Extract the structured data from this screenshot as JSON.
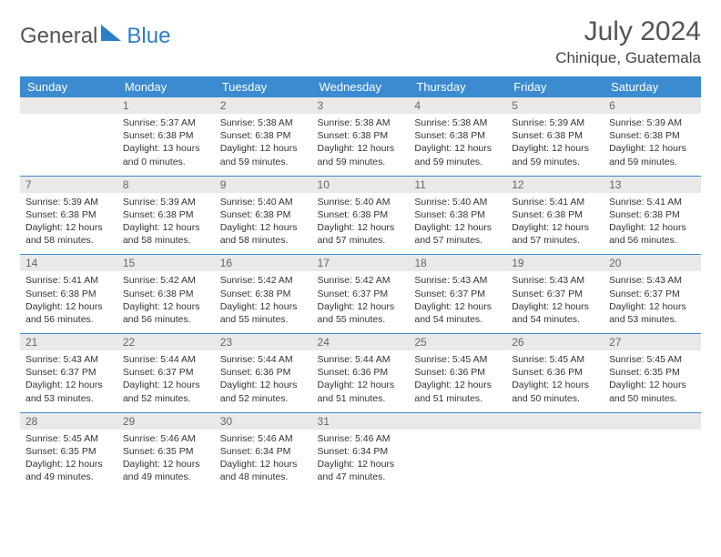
{
  "logo": {
    "general": "General",
    "blue": "Blue"
  },
  "title": "July 2024",
  "location": "Chinique, Guatemala",
  "colors": {
    "header_bg": "#3a8bd0",
    "header_text": "#ffffff",
    "daynum_bg": "#e9e9e9",
    "rule": "#3a8bd0",
    "text": "#333333"
  },
  "dow": [
    "Sunday",
    "Monday",
    "Tuesday",
    "Wednesday",
    "Thursday",
    "Friday",
    "Saturday"
  ],
  "weeks": [
    [
      null,
      {
        "n": "1",
        "sr": "5:37 AM",
        "ss": "6:38 PM",
        "dl": "13 hours and 0 minutes."
      },
      {
        "n": "2",
        "sr": "5:38 AM",
        "ss": "6:38 PM",
        "dl": "12 hours and 59 minutes."
      },
      {
        "n": "3",
        "sr": "5:38 AM",
        "ss": "6:38 PM",
        "dl": "12 hours and 59 minutes."
      },
      {
        "n": "4",
        "sr": "5:38 AM",
        "ss": "6:38 PM",
        "dl": "12 hours and 59 minutes."
      },
      {
        "n": "5",
        "sr": "5:39 AM",
        "ss": "6:38 PM",
        "dl": "12 hours and 59 minutes."
      },
      {
        "n": "6",
        "sr": "5:39 AM",
        "ss": "6:38 PM",
        "dl": "12 hours and 59 minutes."
      }
    ],
    [
      {
        "n": "7",
        "sr": "5:39 AM",
        "ss": "6:38 PM",
        "dl": "12 hours and 58 minutes."
      },
      {
        "n": "8",
        "sr": "5:39 AM",
        "ss": "6:38 PM",
        "dl": "12 hours and 58 minutes."
      },
      {
        "n": "9",
        "sr": "5:40 AM",
        "ss": "6:38 PM",
        "dl": "12 hours and 58 minutes."
      },
      {
        "n": "10",
        "sr": "5:40 AM",
        "ss": "6:38 PM",
        "dl": "12 hours and 57 minutes."
      },
      {
        "n": "11",
        "sr": "5:40 AM",
        "ss": "6:38 PM",
        "dl": "12 hours and 57 minutes."
      },
      {
        "n": "12",
        "sr": "5:41 AM",
        "ss": "6:38 PM",
        "dl": "12 hours and 57 minutes."
      },
      {
        "n": "13",
        "sr": "5:41 AM",
        "ss": "6:38 PM",
        "dl": "12 hours and 56 minutes."
      }
    ],
    [
      {
        "n": "14",
        "sr": "5:41 AM",
        "ss": "6:38 PM",
        "dl": "12 hours and 56 minutes."
      },
      {
        "n": "15",
        "sr": "5:42 AM",
        "ss": "6:38 PM",
        "dl": "12 hours and 56 minutes."
      },
      {
        "n": "16",
        "sr": "5:42 AM",
        "ss": "6:38 PM",
        "dl": "12 hours and 55 minutes."
      },
      {
        "n": "17",
        "sr": "5:42 AM",
        "ss": "6:37 PM",
        "dl": "12 hours and 55 minutes."
      },
      {
        "n": "18",
        "sr": "5:43 AM",
        "ss": "6:37 PM",
        "dl": "12 hours and 54 minutes."
      },
      {
        "n": "19",
        "sr": "5:43 AM",
        "ss": "6:37 PM",
        "dl": "12 hours and 54 minutes."
      },
      {
        "n": "20",
        "sr": "5:43 AM",
        "ss": "6:37 PM",
        "dl": "12 hours and 53 minutes."
      }
    ],
    [
      {
        "n": "21",
        "sr": "5:43 AM",
        "ss": "6:37 PM",
        "dl": "12 hours and 53 minutes."
      },
      {
        "n": "22",
        "sr": "5:44 AM",
        "ss": "6:37 PM",
        "dl": "12 hours and 52 minutes."
      },
      {
        "n": "23",
        "sr": "5:44 AM",
        "ss": "6:36 PM",
        "dl": "12 hours and 52 minutes."
      },
      {
        "n": "24",
        "sr": "5:44 AM",
        "ss": "6:36 PM",
        "dl": "12 hours and 51 minutes."
      },
      {
        "n": "25",
        "sr": "5:45 AM",
        "ss": "6:36 PM",
        "dl": "12 hours and 51 minutes."
      },
      {
        "n": "26",
        "sr": "5:45 AM",
        "ss": "6:36 PM",
        "dl": "12 hours and 50 minutes."
      },
      {
        "n": "27",
        "sr": "5:45 AM",
        "ss": "6:35 PM",
        "dl": "12 hours and 50 minutes."
      }
    ],
    [
      {
        "n": "28",
        "sr": "5:45 AM",
        "ss": "6:35 PM",
        "dl": "12 hours and 49 minutes."
      },
      {
        "n": "29",
        "sr": "5:46 AM",
        "ss": "6:35 PM",
        "dl": "12 hours and 49 minutes."
      },
      {
        "n": "30",
        "sr": "5:46 AM",
        "ss": "6:34 PM",
        "dl": "12 hours and 48 minutes."
      },
      {
        "n": "31",
        "sr": "5:46 AM",
        "ss": "6:34 PM",
        "dl": "12 hours and 47 minutes."
      },
      null,
      null,
      null
    ]
  ],
  "labels": {
    "sunrise": "Sunrise: ",
    "sunset": "Sunset: ",
    "daylight": "Daylight: "
  }
}
